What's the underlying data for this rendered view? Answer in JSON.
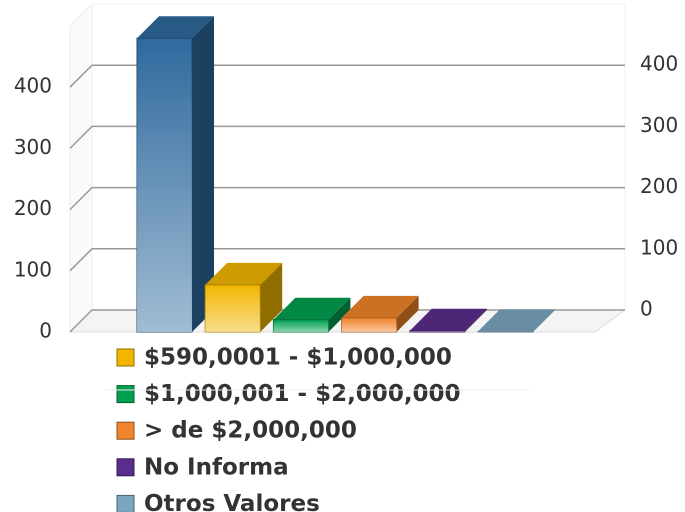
{
  "chart_data": {
    "type": "bar3d",
    "series": [
      {
        "name": null,
        "color": "#2f6a9e",
        "values": [
          480
        ]
      },
      {
        "name": "$590,0001 - $1,000,000",
        "color": "#f2b600",
        "values": [
          77
        ]
      },
      {
        "name": "$1,000,001 - $2,000,000",
        "color": "#00a050",
        "values": [
          20
        ]
      },
      {
        "name": "> de $2,000,000",
        "color": "#f0842a",
        "values": [
          23
        ]
      },
      {
        "name": "No Informa",
        "color": "#5a2d8c",
        "values": [
          2
        ]
      },
      {
        "name": "Otros Valores",
        "color": "#7aa6bf",
        "values": [
          1
        ]
      }
    ],
    "ylim": [
      0,
      500
    ],
    "yticks": [
      0,
      100,
      200,
      300,
      400
    ],
    "y2lim": [
      0,
      500
    ],
    "y2ticks": [
      0,
      100,
      200,
      300,
      400
    ],
    "grid": true
  }
}
